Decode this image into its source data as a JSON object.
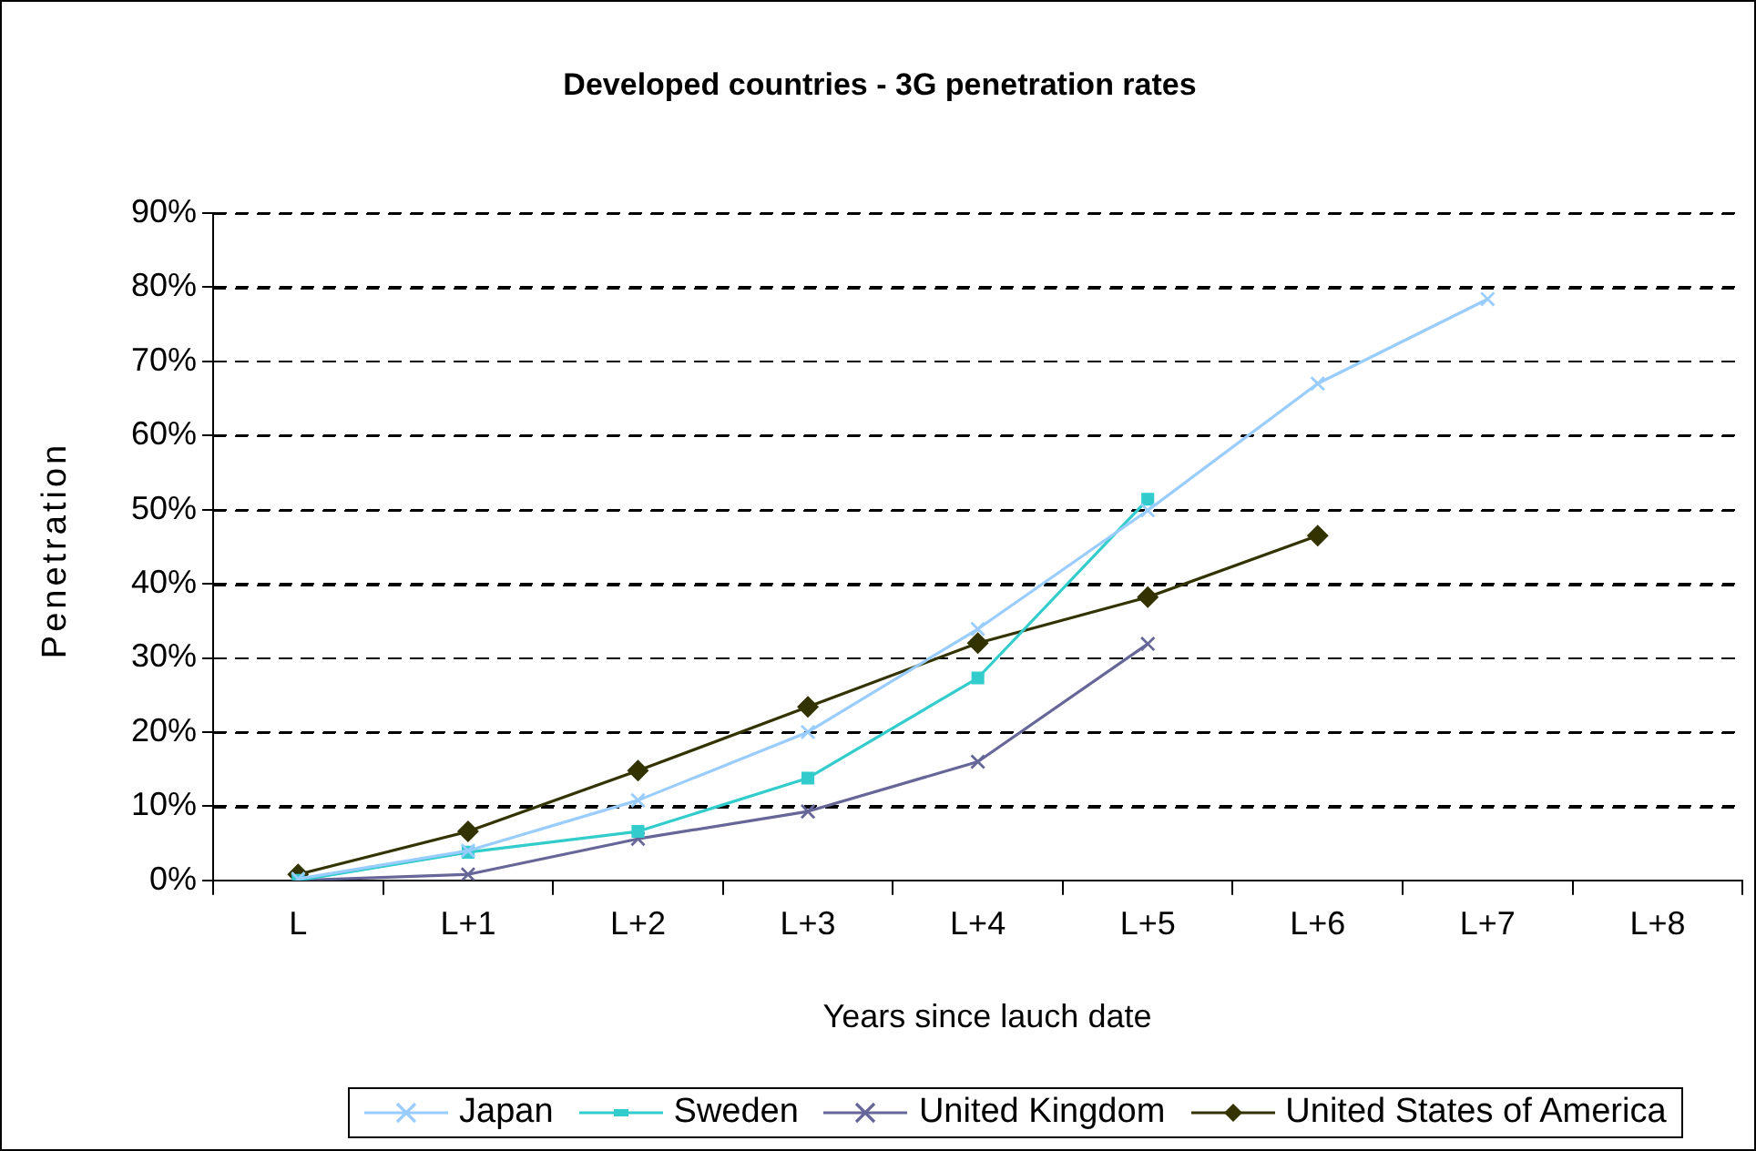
{
  "chart_data": {
    "type": "line",
    "title": "Developed countries - 3G penetration rates",
    "xlabel": "Years since lauch date",
    "ylabel": "Penetration",
    "categories": [
      "L",
      "L+1",
      "L+2",
      "L+3",
      "L+4",
      "L+5",
      "L+6",
      "L+7",
      "L+8"
    ],
    "series": [
      {
        "name": "Japan",
        "color": "#99ccff",
        "marker": "cross",
        "values": [
          0.2,
          4.0,
          10.8,
          20.0,
          33.9,
          49.9,
          67.0,
          78.4,
          null
        ]
      },
      {
        "name": "Sweden",
        "color": "#33cccc",
        "marker": "square",
        "values": [
          0,
          3.8,
          6.6,
          13.8,
          27.3,
          51.4,
          null,
          null,
          null
        ]
      },
      {
        "name": "United Kingdom",
        "color": "#666699",
        "marker": "cross",
        "values": [
          0,
          0.8,
          5.6,
          9.3,
          16.0,
          31.9,
          null,
          null,
          null
        ]
      },
      {
        "name": "United States of America",
        "color": "#333300",
        "marker": "diamond",
        "values": [
          0.8,
          6.6,
          14.8,
          23.4,
          32.0,
          38.2,
          46.5,
          null,
          null
        ]
      }
    ],
    "ylim": [
      0,
      90
    ],
    "yticks": [
      {
        "value": 0,
        "label": "0%"
      },
      {
        "value": 10,
        "label": "10%"
      },
      {
        "value": 20,
        "label": "20%"
      },
      {
        "value": 30,
        "label": "30%"
      },
      {
        "value": 40,
        "label": "40%"
      },
      {
        "value": 50,
        "label": "50%"
      },
      {
        "value": 60,
        "label": "60%"
      },
      {
        "value": 70,
        "label": "70%"
      },
      {
        "value": 80,
        "label": "80%"
      },
      {
        "value": 90,
        "label": "90%"
      }
    ],
    "grid": "y",
    "legend": "bottom",
    "line_style": "solid"
  }
}
